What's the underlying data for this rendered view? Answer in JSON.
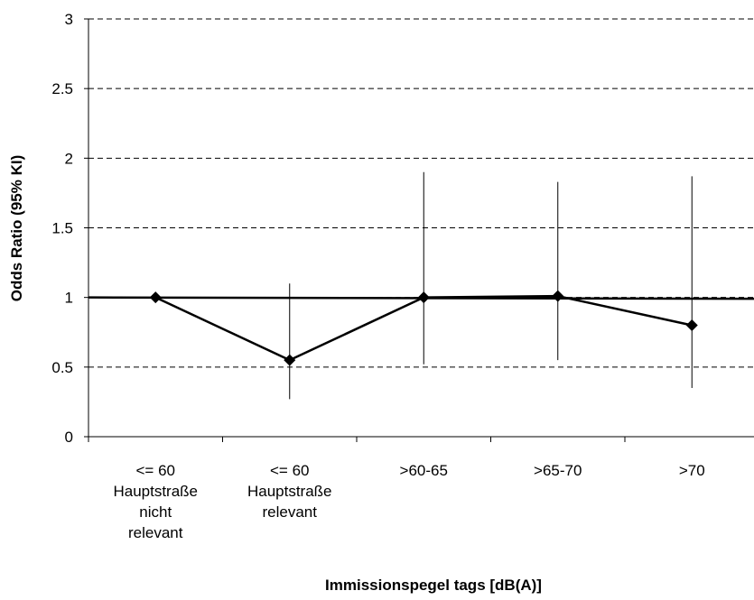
{
  "chart_data": {
    "type": "line",
    "title": "",
    "xlabel": "Immissionspegel tags [dB(A)]",
    "ylabel": "Odds Ratio (95% KI)",
    "ylim": [
      0,
      3
    ],
    "yticks": [
      "0",
      "0.5",
      "1",
      "1.5",
      "2",
      "2.5",
      "3"
    ],
    "grid": "horizontal dashed",
    "reference_line": 1,
    "categories": [
      [
        "<= 60",
        "Hauptstraße",
        "nicht",
        "relevant"
      ],
      [
        "<= 60",
        "Hauptstraße",
        "relevant"
      ],
      [
        ">60-65"
      ],
      [
        ">65-70"
      ],
      [
        ">70"
      ]
    ],
    "series": [
      {
        "values": [
          1.0,
          0.55,
          1.0,
          1.01,
          0.8
        ],
        "ci_lower": [
          1.0,
          0.27,
          0.52,
          0.55,
          0.35
        ],
        "ci_upper": [
          1.0,
          1.1,
          1.9,
          1.83,
          1.87
        ],
        "color": "#000000",
        "marker": "diamond"
      }
    ]
  }
}
